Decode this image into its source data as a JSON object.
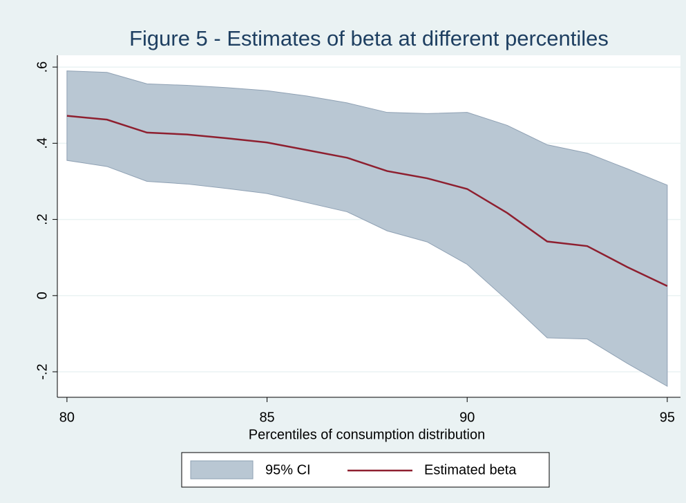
{
  "chart_data": {
    "type": "band_line",
    "title": "Figure 5 - Estimates of beta at different percentiles",
    "x_label": "Percentiles of consumption distribution",
    "x": [
      80,
      81,
      82,
      83,
      84,
      85,
      86,
      87,
      88,
      89,
      90,
      91,
      92,
      93,
      94,
      95
    ],
    "xlim": [
      79.76,
      95.33
    ],
    "xticks": [
      80,
      85,
      90,
      95
    ],
    "ylim": [
      -0.267,
      0.631
    ],
    "yticks": [
      {
        "value": 0.6,
        "label": ".6"
      },
      {
        "value": 0.4,
        "label": ".4"
      },
      {
        "value": 0.2,
        "label": ".2"
      },
      0,
      {
        "value": -0.2,
        "label": "-.2"
      }
    ],
    "grid": true,
    "series": [
      {
        "name": "95% CI",
        "color": "#b9c7d3",
        "upper": [
          0.59,
          0.586,
          0.556,
          0.552,
          0.546,
          0.538,
          0.524,
          0.506,
          0.481,
          0.478,
          0.481,
          0.447,
          0.396,
          0.374,
          0.333,
          0.29
        ],
        "lower": [
          0.355,
          0.339,
          0.3,
          0.293,
          0.281,
          0.268,
          0.244,
          0.22,
          0.17,
          0.141,
          0.082,
          -0.012,
          -0.111,
          -0.114,
          -0.178,
          -0.238
        ]
      },
      {
        "name": "Estimated beta",
        "color": "#8e1f2f",
        "values": [
          0.472,
          0.462,
          0.428,
          0.423,
          0.413,
          0.402,
          0.382,
          0.362,
          0.327,
          0.308,
          0.28,
          0.217,
          0.142,
          0.13,
          0.075,
          0.025
        ]
      }
    ]
  }
}
